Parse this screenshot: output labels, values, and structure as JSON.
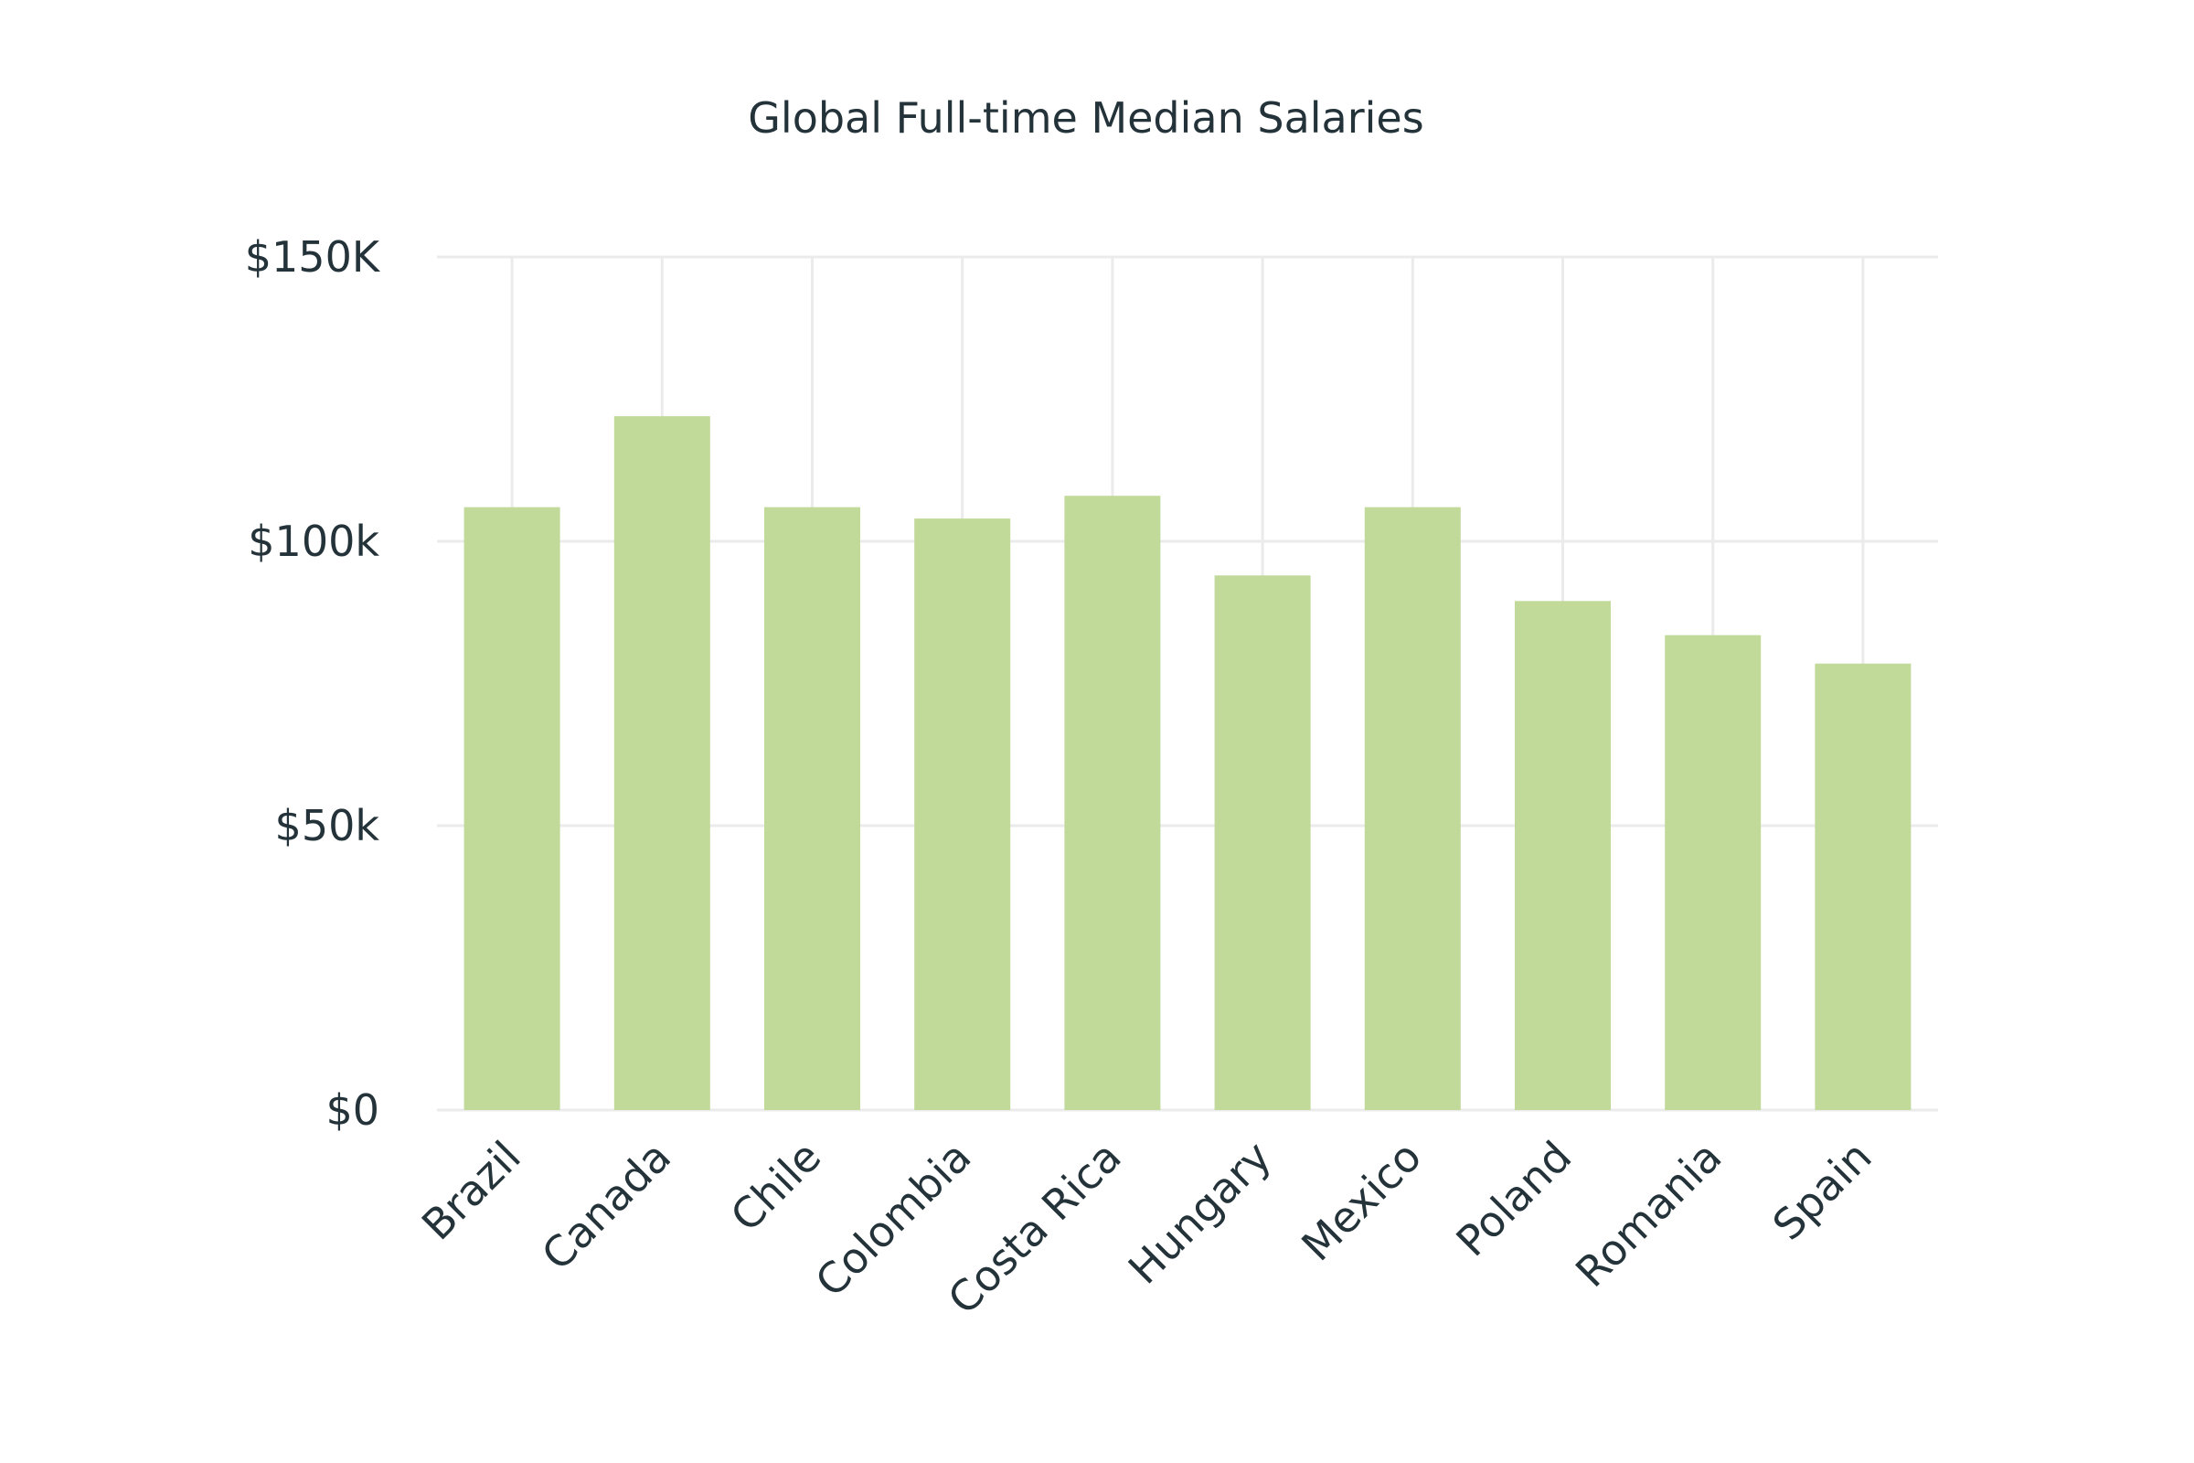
{
  "chart_data": {
    "type": "bar",
    "title": "Global Full-time Median Salaries",
    "categories": [
      "Brazil",
      "Canada",
      "Chile",
      "Colombia",
      "Costa Rica",
      "Hungary",
      "Mexico",
      "Poland",
      "Romania",
      "Spain"
    ],
    "values": [
      106000,
      122000,
      106000,
      104000,
      108000,
      94000,
      106000,
      89500,
      83500,
      78500
    ],
    "ylim": [
      0,
      150000
    ],
    "yticks": [
      0,
      50000,
      100000,
      150000
    ],
    "ytick_labels": [
      "$0",
      "$50k",
      "$100k",
      "$150K"
    ],
    "bar_color": "#c1d999",
    "text_color": "#24333a",
    "grid_color": "#ebebeb",
    "grid": true,
    "legend": "none"
  }
}
